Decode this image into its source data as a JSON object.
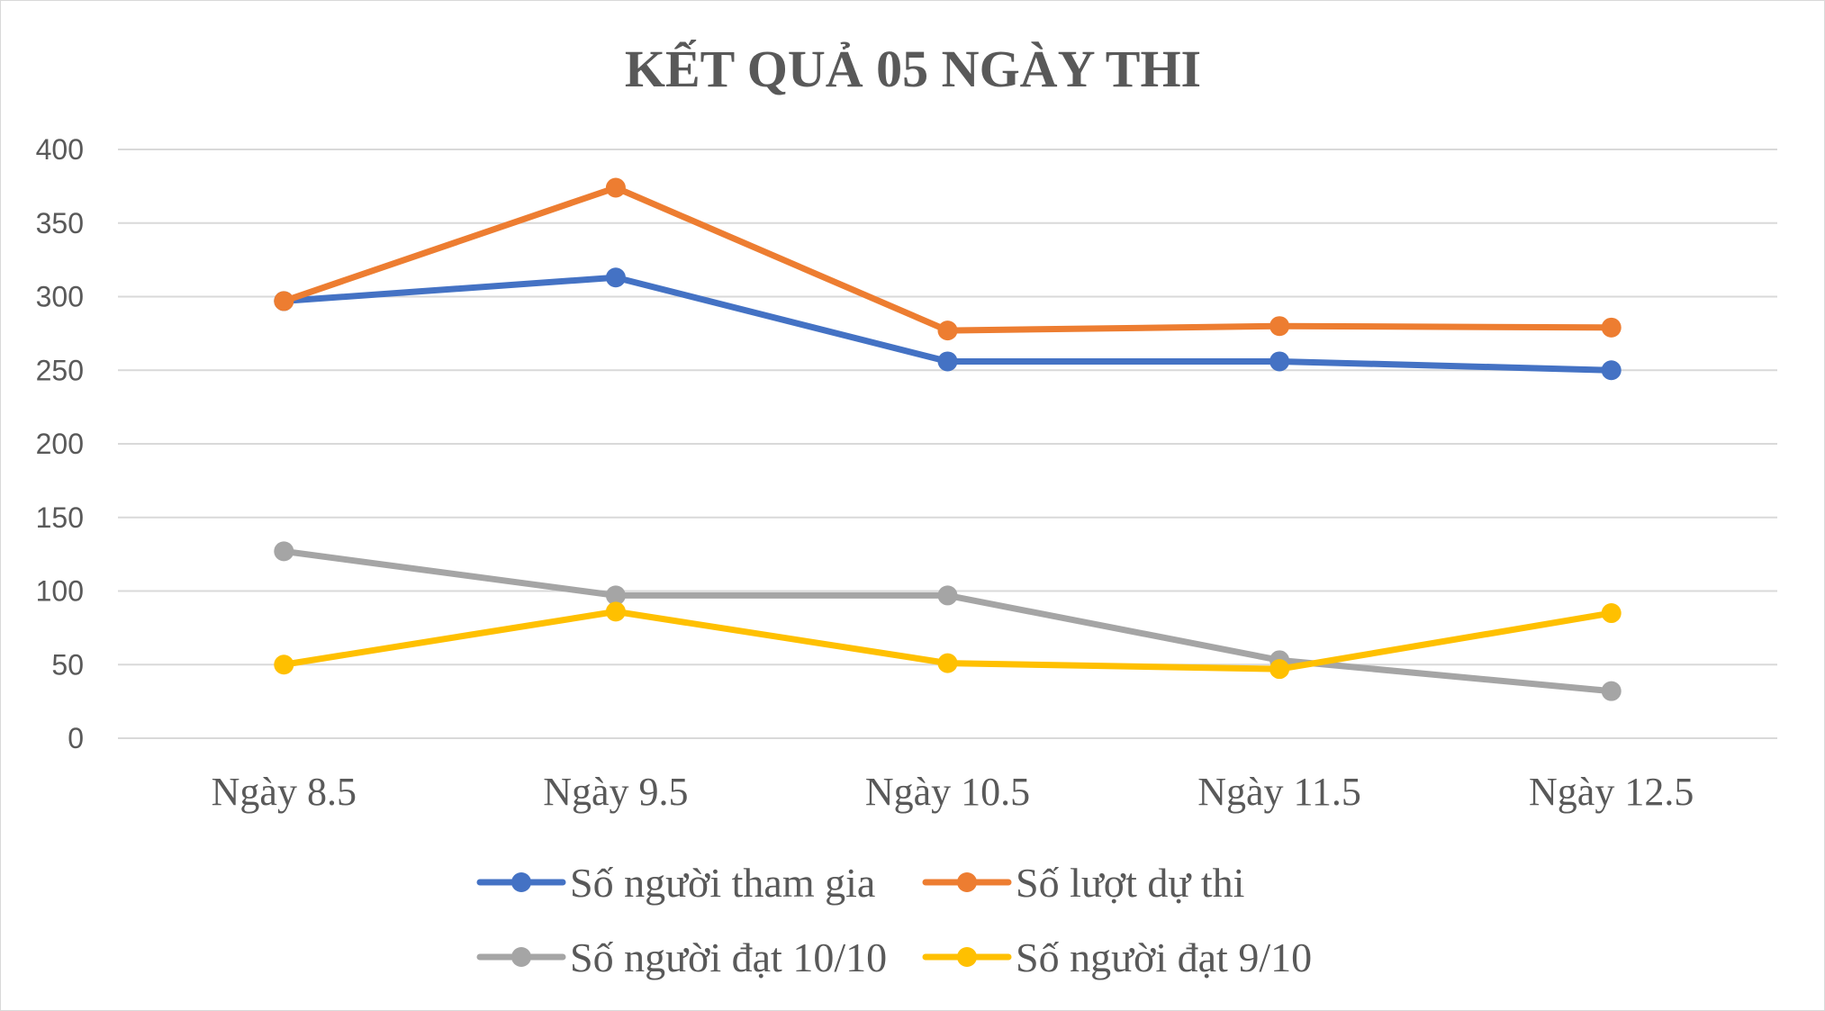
{
  "chart_data": {
    "type": "line",
    "title": "KẾT QUẢ 05 NGÀY THI",
    "xlabel": "",
    "ylabel": "",
    "categories": [
      "Ngày 8.5",
      "Ngày 9.5",
      "Ngày 10.5",
      "Ngày 11.5",
      "Ngày 12.5"
    ],
    "ylim": [
      0,
      400
    ],
    "yticks": [
      0,
      50,
      100,
      150,
      200,
      250,
      300,
      350,
      400
    ],
    "grid": true,
    "legend_position": "bottom",
    "series": [
      {
        "name": "Số người tham gia",
        "color": "#4472C4",
        "values": [
          297,
          313,
          256,
          256,
          250
        ]
      },
      {
        "name": "Số lượt dự thi",
        "color": "#ED7D31",
        "values": [
          297,
          374,
          277,
          280,
          279
        ]
      },
      {
        "name": "Số người đạt 10/10",
        "color": "#A5A5A5",
        "values": [
          127,
          97,
          97,
          53,
          32
        ]
      },
      {
        "name": "Số người đạt 9/10",
        "color": "#FFC000",
        "values": [
          50,
          86,
          51,
          47,
          85
        ]
      }
    ]
  }
}
